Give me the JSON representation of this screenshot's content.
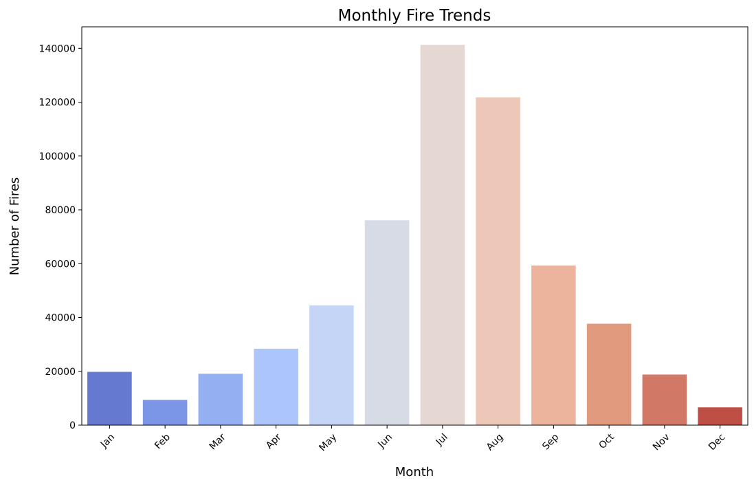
{
  "chart_data": {
    "type": "bar",
    "title": "Monthly Fire Trends",
    "xlabel": "Month",
    "ylabel": "Number of Fires",
    "categories": [
      "Jan",
      "Feb",
      "Mar",
      "Apr",
      "May",
      "Jun",
      "Jul",
      "Aug",
      "Sep",
      "Oct",
      "Nov",
      "Dec"
    ],
    "values": [
      19800,
      9400,
      19100,
      28400,
      44500,
      76100,
      141300,
      121800,
      59300,
      37700,
      18800,
      6600
    ],
    "ylim": [
      0,
      148000
    ],
    "yticks": [
      0,
      20000,
      40000,
      60000,
      80000,
      100000,
      120000,
      140000
    ],
    "ytick_labels": [
      "0",
      "20000",
      "40000",
      "60000",
      "80000",
      "100000",
      "120000",
      "140000"
    ],
    "colors": [
      "#6479cf",
      "#7b96e6",
      "#94b0f3",
      "#acc6fb",
      "#c5d5f6",
      "#d6dbe6",
      "#e5d8d2",
      "#edc7b8",
      "#ecb49c",
      "#e19a7e",
      "#d17866",
      "#be4f45"
    ],
    "grid": false,
    "legend": "none"
  }
}
